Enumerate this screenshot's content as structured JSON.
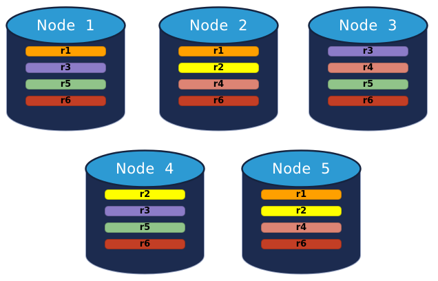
{
  "colors": {
    "background": "#ffffff",
    "cylinder_body": "#1c2b4f",
    "cylinder_top": "#2d9ad3",
    "cylinder_outline": "#152440",
    "cylinder_rim": "#9aa6c4",
    "title_text": "#ffffff",
    "bar_text": "#000000",
    "replicas": {
      "r1": "#ffa000",
      "r2": "#ffff00",
      "r3": "#8c7cc8",
      "r4": "#dd8474",
      "r5": "#90c489",
      "r6": "#c33e25"
    }
  },
  "nodes": [
    {
      "title": "Node  1",
      "replicas": [
        "r1",
        "r3",
        "r5",
        "r6"
      ]
    },
    {
      "title": "Node  2",
      "replicas": [
        "r1",
        "r2",
        "r4",
        "r6"
      ]
    },
    {
      "title": "Node  3",
      "replicas": [
        "r3",
        "r4",
        "r5",
        "r6"
      ]
    },
    {
      "title": "Node  4",
      "replicas": [
        "r2",
        "r3",
        "r5",
        "r6"
      ]
    },
    {
      "title": "Node  5",
      "replicas": [
        "r1",
        "r2",
        "r4",
        "r6"
      ]
    }
  ]
}
